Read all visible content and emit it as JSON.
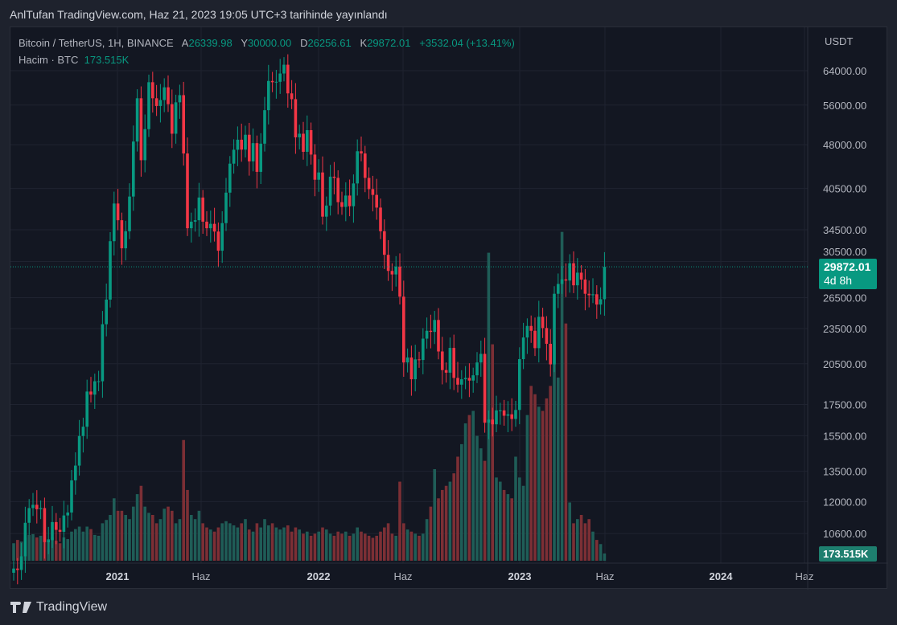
{
  "publication": "AnlTufan TradingView.com, Haz 21, 2023 19:05 UTC+3 tarihinde yayınlandı",
  "legend": {
    "symbol": "Bitcoin / TetherUS, 1H, BINANCE",
    "open_label": "A",
    "open": "26339.98",
    "high_label": "Y",
    "high": "30000.00",
    "low_label": "D",
    "low": "26256.61",
    "close_label": "K",
    "close": "29872.01",
    "change": "+3532.04 (+13.41%)",
    "volume_label": "Hacim · BTC",
    "volume": "173.515K"
  },
  "currency": "USDT",
  "price_tag": {
    "price": "29872.01",
    "countdown": "4d 8h"
  },
  "volume_tag": "173.515K",
  "brand": "TradingView",
  "colors": {
    "up": "#089981",
    "down": "#f23645",
    "vol_up": "#1f5d57",
    "vol_down": "#7c2f35",
    "grid": "#1f2330",
    "text": "#b2b5be"
  },
  "chart_data": {
    "type": "candlestick",
    "scale": "log",
    "price_ticks": [
      "64000.00",
      "56000.00",
      "48000.00",
      "40500.00",
      "34500.00",
      "30500.00",
      "26500.00",
      "23500.00",
      "20500.00",
      "17500.00",
      "15500.00",
      "13500.00",
      "12000.00",
      "10600.00"
    ],
    "time_ticks": [
      {
        "label": "2021",
        "bold": true
      },
      {
        "label": "Haz",
        "bold": false
      },
      {
        "label": "2022",
        "bold": true
      },
      {
        "label": "Haz",
        "bold": false
      },
      {
        "label": "2023",
        "bold": true
      },
      {
        "label": "Haz",
        "bold": false
      },
      {
        "label": "2024",
        "bold": true
      },
      {
        "label": "Haz",
        "bold": false
      }
    ],
    "first_open": 9100,
    "closes": [
      9250,
      9200,
      9700,
      11050,
      11700,
      11850,
      11650,
      11700,
      10250,
      10330,
      11080,
      10750,
      10670,
      11370,
      11500,
      13030,
      13800,
      15480,
      16050,
      18400,
      18180,
      19150,
      19150,
      23900,
      26300,
      33000,
      38200,
      35800,
      32100,
      34300,
      39250,
      48600,
      57500,
      45200,
      51000,
      61200,
      57500,
      55800,
      57100,
      60000,
      56200,
      50100,
      56600,
      58200,
      46400,
      34700,
      35600,
      35800,
      39100,
      35600,
      34700,
      35300,
      34260,
      31800,
      35400,
      39850,
      44600,
      47080,
      48950,
      47100,
      49900,
      45000,
      48300,
      43200,
      48200,
      54900,
      61500,
      61200,
      61300,
      63300,
      65500,
      58600,
      57300,
      49400,
      50100,
      46700,
      50800,
      46200,
      41900,
      43100,
      36300,
      37900,
      42400,
      42200,
      38400,
      37700,
      39400,
      37800,
      41300,
      46800,
      46400,
      42200,
      40400,
      39500,
      37600,
      34300,
      31300,
      29400,
      29000,
      29900,
      26600,
      20600,
      21000,
      19300,
      20850,
      20800,
      22600,
      23300,
      23200,
      24300,
      21500,
      20000,
      19800,
      21800,
      19400,
      18900,
      19300,
      19400,
      19200,
      19600,
      20600,
      21300,
      16300,
      16500,
      16200,
      17100,
      17100,
      16750,
      16840,
      16540,
      17130,
      20870,
      22700,
      23740,
      23300,
      21780,
      24600,
      23550,
      22150,
      20450,
      26900,
      27950,
      28450,
      28320,
      30290,
      27800,
      29200,
      28430,
      26900,
      26750,
      26850,
      25800,
      26340,
      29872
    ],
    "volumes_k": [
      420,
      500,
      460,
      560,
      620,
      640,
      560,
      600,
      700,
      520,
      560,
      480,
      420,
      560,
      520,
      700,
      760,
      820,
      700,
      820,
      760,
      620,
      600,
      900,
      980,
      1100,
      1500,
      1200,
      1200,
      1100,
      1000,
      1300,
      1600,
      1800,
      1300,
      1150,
      1100,
      900,
      1000,
      1250,
      1300,
      1200,
      900,
      1000,
      2900,
      1700,
      1100,
      1000,
      1200,
      900,
      800,
      750,
      700,
      800,
      900,
      950,
      900,
      850,
      800,
      900,
      1000,
      750,
      700,
      900,
      800,
      1000,
      850,
      900,
      800,
      750,
      800,
      850,
      700,
      800,
      750,
      650,
      700,
      600,
      650,
      700,
      800,
      750,
      650,
      600,
      700,
      650,
      700,
      600,
      650,
      800,
      700,
      650,
      600,
      550,
      600,
      700,
      800,
      900,
      650,
      600,
      1900,
      900,
      750,
      700,
      650,
      600,
      650,
      1000,
      1300,
      2200,
      1500,
      1700,
      1800,
      1900,
      2100,
      2500,
      2800,
      3300,
      3500,
      3600,
      3000,
      2700,
      2400,
      7400,
      5200,
      2000,
      1900,
      1700,
      1600,
      1500,
      2500,
      2000,
      1800,
      3500,
      4200,
      4000,
      3700,
      3600,
      3900,
      4200,
      5300,
      4400,
      7900,
      5700,
      1400,
      900,
      1000,
      1100,
      900,
      1000,
      700,
      500,
      400,
      174
    ],
    "current_price": 29872.01
  }
}
